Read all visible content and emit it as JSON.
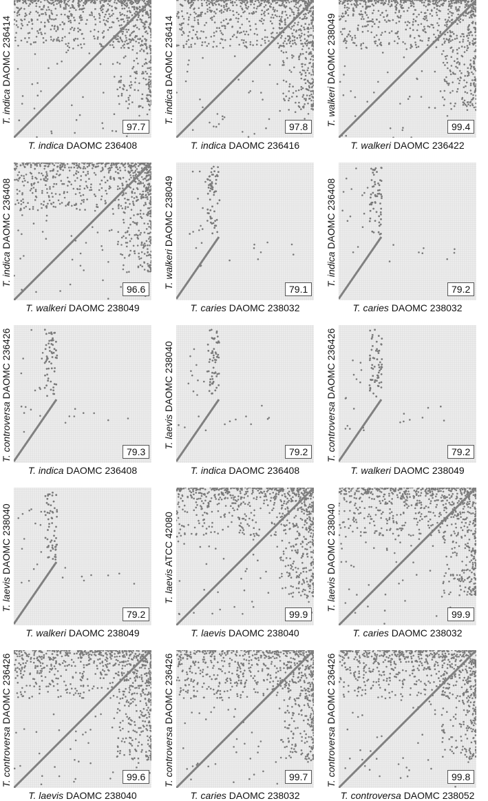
{
  "chart_data": [
    {
      "type": "scatter",
      "x_species": "T. indica",
      "x_strain": "DAOMC 236408",
      "y_species": "T. indica",
      "y_strain": "DAOMC 236414",
      "score": "97.7",
      "pattern": "collinear"
    },
    {
      "type": "scatter",
      "x_species": "T. indica",
      "x_strain": "DAOMC 236416",
      "y_species": "T. indica",
      "y_strain": "DAOMC 236414",
      "score": "97.8",
      "pattern": "collinear"
    },
    {
      "type": "scatter",
      "x_species": "T. walkeri",
      "x_strain": "DAOMC 236422",
      "y_species": "T. walkeri",
      "y_strain": "DAOMC 238049",
      "score": "99.4",
      "pattern": "collinear"
    },
    {
      "type": "scatter",
      "x_species": "T. walkeri",
      "x_strain": "DAOMC 238049",
      "y_species": "T. indica",
      "y_strain": "DAOMC 236408",
      "score": "96.6",
      "pattern": "collinear"
    },
    {
      "type": "scatter",
      "x_species": "T. caries",
      "x_strain": "DAOMC 238032",
      "y_species": "T. walkeri",
      "y_strain": "DAOMC 238049",
      "score": "79.1",
      "pattern": "short"
    },
    {
      "type": "scatter",
      "x_species": "T. caries",
      "x_strain": "DAOMC 238032",
      "y_species": "T. indica",
      "y_strain": "DAOMC 236408",
      "score": "79.2",
      "pattern": "short"
    },
    {
      "type": "scatter",
      "x_species": "T. indica",
      "x_strain": "DAOMC 236408",
      "y_species": "T. controversa",
      "y_strain": "DAOMC 236426",
      "score": "79.3",
      "pattern": "short"
    },
    {
      "type": "scatter",
      "x_species": "T. indica",
      "x_strain": "DAOMC 236408",
      "y_species": "T. laevis",
      "y_strain": "DAOMC 238040",
      "score": "79.2",
      "pattern": "short"
    },
    {
      "type": "scatter",
      "x_species": "T. walkeri",
      "x_strain": "DAOMC 238049",
      "y_species": "T. controversa",
      "y_strain": "DAOMC 236426",
      "score": "79.2",
      "pattern": "short"
    },
    {
      "type": "scatter",
      "x_species": "T. walkeri",
      "x_strain": "DAOMC 238049",
      "y_species": "T. laevis",
      "y_strain": "DAOMC 238040",
      "score": "79.2",
      "pattern": "short"
    },
    {
      "type": "scatter",
      "x_species": "T. laevis",
      "x_strain": "DAOMC 238040",
      "y_species": "T. laevis",
      "y_strain": "ATCC 42080",
      "score": "99.9",
      "pattern": "collinear"
    },
    {
      "type": "scatter",
      "x_species": "T. caries",
      "x_strain": "DAOMC 238032",
      "y_species": "T. laevis",
      "y_strain": "DAOMC 238040",
      "score": "99.9",
      "pattern": "collinear"
    },
    {
      "type": "scatter",
      "x_species": "T. laevis",
      "x_strain": "DAOMC 238040",
      "y_species": "T. controversa",
      "y_strain": "DAOMC 236426",
      "score": "99.6",
      "pattern": "collinear"
    },
    {
      "type": "scatter",
      "x_species": "T. caries",
      "x_strain": "DAOMC 238032",
      "y_species": "T. controversa",
      "y_strain": "DAOMC 236426",
      "score": "99.7",
      "pattern": "collinear"
    },
    {
      "type": "scatter",
      "x_species": "T. controversa",
      "x_strain": "DAOMC 238052",
      "y_species": "T. controversa",
      "y_strain": "DAOMC 236426",
      "score": "99.8",
      "pattern": "collinear"
    }
  ],
  "colors": {
    "dot": "#7a7a7a",
    "grid": "#d4d4d4",
    "plot_bg": "#f2f2f2",
    "diag": "#808080"
  }
}
